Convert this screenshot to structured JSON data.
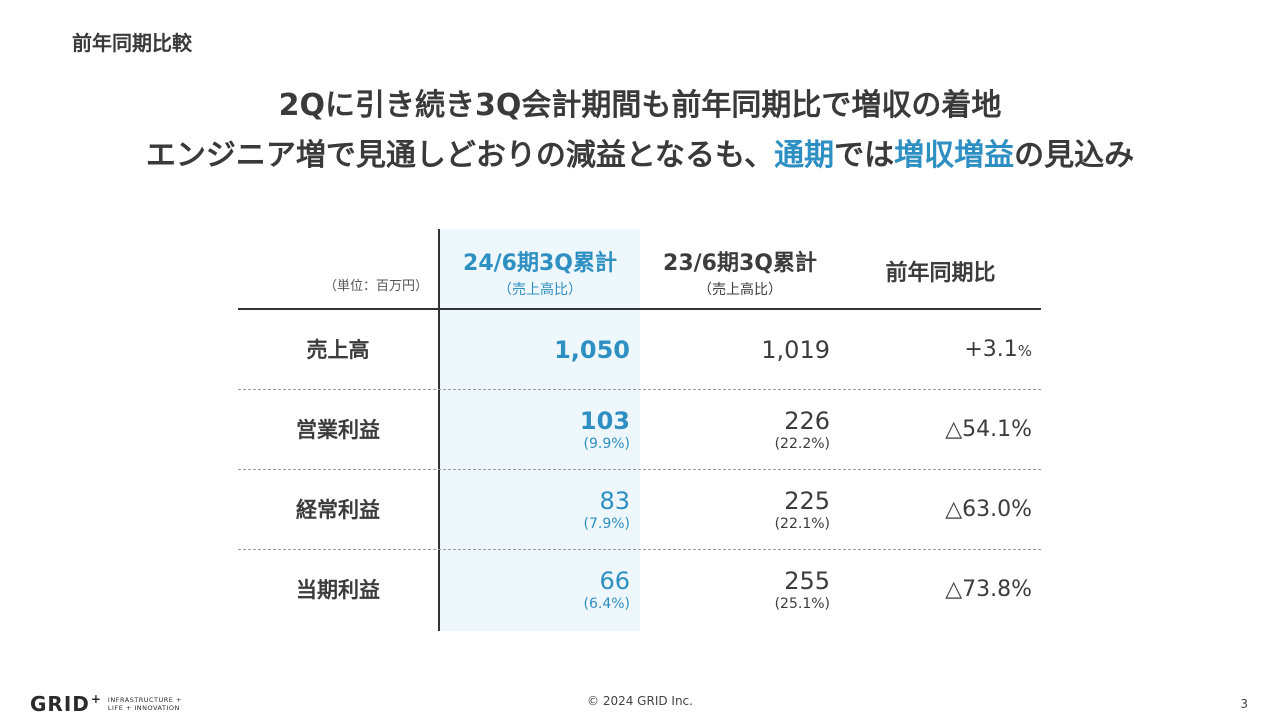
{
  "section_label": "前年同期比較",
  "headline": {
    "line1": "2Qに引き続き3Q会計期間も前年同期比で増収の着地",
    "line2_a": "エンジニア増で見通しどおりの減益となるも、",
    "line2_hl1": "通期",
    "line2_b": "では",
    "line2_hl2": "増収増益",
    "line2_c": "の見込み"
  },
  "table": {
    "unit": "（単位：百万円）",
    "columns": [
      {
        "title": "24/6期3Q累計",
        "sub": "（売上高比）"
      },
      {
        "title": "23/6期3Q累計",
        "sub": "（売上高比）"
      },
      {
        "title": "前年同期比"
      }
    ],
    "rows": [
      {
        "label": "売上高",
        "cur": "1,050",
        "cur_ratio": "",
        "prev": "1,019",
        "prev_ratio": "",
        "yoy": "+3.1",
        "yoy_unit": "%"
      },
      {
        "label": "営業利益",
        "cur": "103",
        "cur_ratio": "(9.9%)",
        "prev": "226",
        "prev_ratio": "(22.2%)",
        "yoy": "△54.1%",
        "yoy_unit": ""
      },
      {
        "label": "経常利益",
        "cur": "83",
        "cur_ratio": "(7.9%)",
        "prev": "225",
        "prev_ratio": "(22.1%)",
        "yoy": "△63.0%",
        "yoy_unit": ""
      },
      {
        "label": "当期利益",
        "cur": "66",
        "cur_ratio": "(6.4%)",
        "prev": "255",
        "prev_ratio": "(25.1%)",
        "yoy": "△73.8%",
        "yoy_unit": ""
      }
    ]
  },
  "footer": {
    "logo_text": "GRID",
    "logo_plus": "+",
    "logo_tag_line1": "INFRASTRUCTURE +",
    "logo_tag_line2": "LIFE + INNOVATION",
    "copyright": "© 2024 GRID Inc.",
    "page_number": "3"
  },
  "colors": {
    "accent": "#2e8fc3",
    "highlight_bg": "#eef7fb",
    "text": "#3c3c3c"
  }
}
